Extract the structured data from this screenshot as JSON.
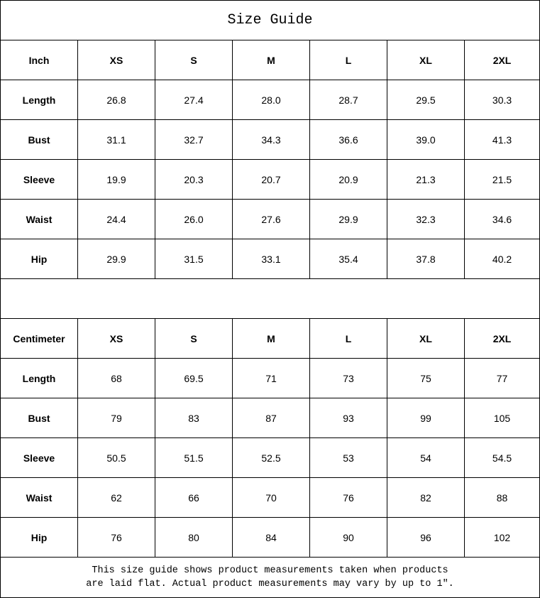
{
  "title": "Size Guide",
  "sizes": [
    "XS",
    "S",
    "M",
    "L",
    "XL",
    "2XL"
  ],
  "inch": {
    "unit_label": "Inch",
    "rows": [
      {
        "label": "Length",
        "values": [
          "26.8",
          "27.4",
          "28.0",
          "28.7",
          "29.5",
          "30.3"
        ]
      },
      {
        "label": "Bust",
        "values": [
          "31.1",
          "32.7",
          "34.3",
          "36.6",
          "39.0",
          "41.3"
        ]
      },
      {
        "label": "Sleeve",
        "values": [
          "19.9",
          "20.3",
          "20.7",
          "20.9",
          "21.3",
          "21.5"
        ]
      },
      {
        "label": "Waist",
        "values": [
          "24.4",
          "26.0",
          "27.6",
          "29.9",
          "32.3",
          "34.6"
        ]
      },
      {
        "label": "Hip",
        "values": [
          "29.9",
          "31.5",
          "33.1",
          "35.4",
          "37.8",
          "40.2"
        ]
      }
    ]
  },
  "centimeter": {
    "unit_label": "Centimeter",
    "rows": [
      {
        "label": "Length",
        "values": [
          "68",
          "69.5",
          "71",
          "73",
          "75",
          "77"
        ]
      },
      {
        "label": "Bust",
        "values": [
          "79",
          "83",
          "87",
          "93",
          "99",
          "105"
        ]
      },
      {
        "label": "Sleeve",
        "values": [
          "50.5",
          "51.5",
          "52.5",
          "53",
          "54",
          "54.5"
        ]
      },
      {
        "label": "Waist",
        "values": [
          "62",
          "66",
          "70",
          "76",
          "82",
          "88"
        ]
      },
      {
        "label": "Hip",
        "values": [
          "76",
          "80",
          "84",
          "90",
          "96",
          "102"
        ]
      }
    ]
  },
  "footer": {
    "line1": "This size guide shows product measurements taken when products",
    "line2": "are laid flat. Actual product measurements may vary by up to 1″."
  }
}
